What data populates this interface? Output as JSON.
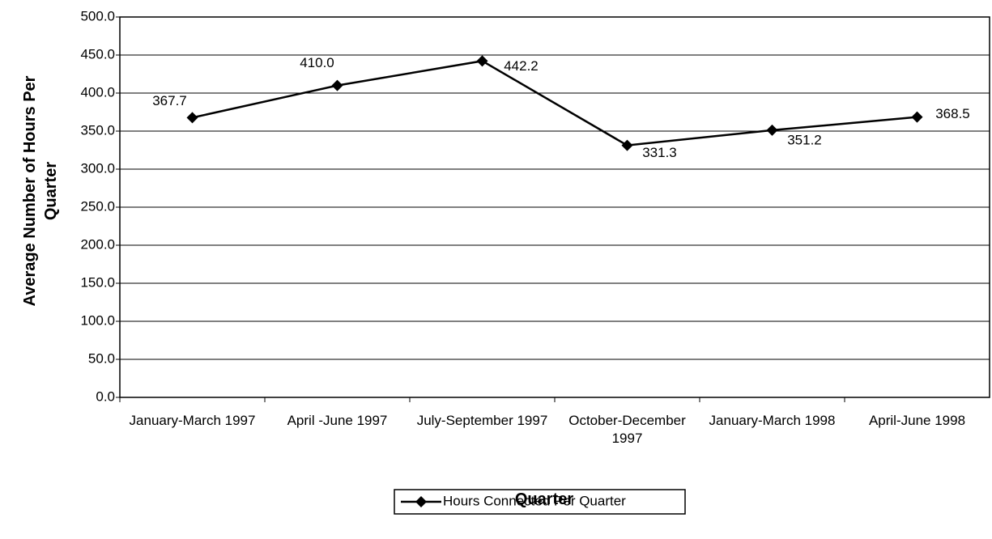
{
  "chart_data": {
    "type": "line",
    "x_label": "Quarter",
    "y_label": "Average Number of Hours Per Quarter",
    "categories": [
      "January-March 1997",
      "April -June 1997",
      "July-September 1997",
      "October-December 1997",
      "January-March 1998",
      "April-June 1998"
    ],
    "series": [
      {
        "name": "Hours Connected Per Quarter",
        "color": "#000000",
        "values": [
          367.7,
          410.0,
          442.2,
          331.3,
          351.2,
          368.5
        ],
        "value_labels": [
          "367.7",
          "410.0",
          "442.2",
          "331.3",
          "351.2",
          "368.5"
        ]
      }
    ],
    "ylim": [
      0,
      500
    ],
    "yticks": [
      {
        "value": 0,
        "label": "0.0"
      },
      {
        "value": 50,
        "label": "50.0"
      },
      {
        "value": 100,
        "label": "100.0"
      },
      {
        "value": 150,
        "label": "150.0"
      },
      {
        "value": 200,
        "label": "200.0"
      },
      {
        "value": 250,
        "label": "250.0"
      },
      {
        "value": 300,
        "label": "300.0"
      },
      {
        "value": 350,
        "label": "350.0"
      },
      {
        "value": 400,
        "label": "400.0"
      },
      {
        "value": 450,
        "label": "450.0"
      },
      {
        "value": 500,
        "label": "500.0"
      }
    ],
    "grid": true,
    "legend": "bottom"
  }
}
